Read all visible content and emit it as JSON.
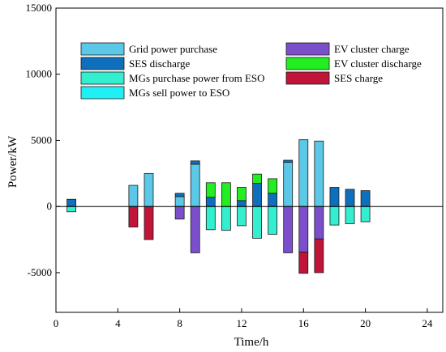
{
  "chart_data": {
    "type": "bar",
    "title": "",
    "xlabel": "Time/h",
    "ylabel": "Power/kW",
    "xlim": [
      0,
      25
    ],
    "ylim": [
      -8000,
      15000
    ],
    "xticks": [
      0,
      4,
      8,
      12,
      16,
      20,
      24
    ],
    "yticks": [
      -5000,
      0,
      5000,
      10000,
      15000
    ],
    "xtick_labels": [
      "0",
      "4",
      "8",
      "12",
      "16",
      "20",
      "24"
    ],
    "ytick_labels": [
      "-5000",
      "0",
      "5000",
      "10000",
      "15000"
    ],
    "x": [
      1,
      5,
      6,
      8,
      9,
      10,
      11,
      12,
      13,
      14,
      15,
      16,
      17,
      18,
      19,
      20
    ],
    "stacked": true,
    "grid": false,
    "legend_position": "top",
    "series": [
      {
        "name": "Grid power purchase",
        "color": "#5ac8e6",
        "values": [
          0,
          1600,
          2500,
          750,
          3200,
          0,
          0,
          0,
          0,
          0,
          3350,
          5050,
          4950,
          0,
          0,
          0
        ]
      },
      {
        "name": "SES discharge",
        "color": "#0e6fbd",
        "values": [
          550,
          0,
          0,
          250,
          250,
          700,
          0,
          450,
          1750,
          1000,
          150,
          0,
          0,
          1450,
          1300,
          1200
        ]
      },
      {
        "name": "MGs purchase power from ESO",
        "color": "#33efd0",
        "values": [
          -400,
          0,
          0,
          0,
          0,
          -1750,
          -1800,
          -1450,
          -2400,
          -2100,
          0,
          0,
          0,
          -1400,
          -1300,
          -1150
        ]
      },
      {
        "name": "MGs sell power to ESO",
        "color": "#1ff0f5",
        "values": [
          0,
          0,
          0,
          0,
          0,
          0,
          0,
          0,
          0,
          0,
          0,
          0,
          0,
          0,
          0,
          0
        ]
      },
      {
        "name": "EV cluster charge",
        "color": "#7b4fcc",
        "values": [
          0,
          0,
          0,
          -950,
          -3500,
          0,
          0,
          0,
          0,
          0,
          -3500,
          -3450,
          -2450,
          0,
          0,
          0
        ]
      },
      {
        "name": "EV cluster discharge",
        "color": "#22ee22",
        "values": [
          0,
          0,
          0,
          0,
          0,
          1100,
          1800,
          1000,
          700,
          1100,
          0,
          0,
          0,
          0,
          0,
          0
        ]
      },
      {
        "name": "SES charge",
        "color": "#c01438",
        "values": [
          0,
          -1550,
          -2500,
          0,
          0,
          0,
          0,
          0,
          0,
          0,
          0,
          -1600,
          -2550,
          0,
          0,
          0
        ]
      }
    ]
  }
}
